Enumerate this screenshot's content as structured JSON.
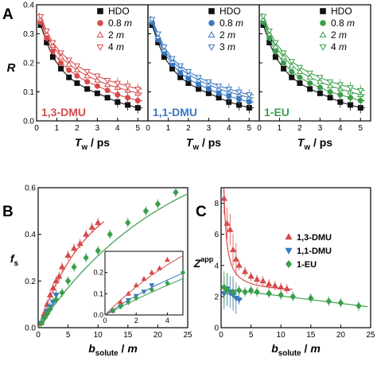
{
  "figure": {
    "panel_letters": [
      "A",
      "B",
      "C"
    ]
  },
  "colors": {
    "red": "#d84a4a",
    "blue": "#3a78c0",
    "green": "#3a9e4a",
    "black": "#111111"
  },
  "chart_data": [
    {
      "type": "scatter",
      "panel": "A",
      "tag": "1,3-DMU",
      "xlabel_main": "T",
      "xlabel_sub": "w",
      "xlabel_unit": " / ps",
      "ylabel": "R",
      "xlim": [
        0,
        5.5
      ],
      "ylim": [
        0,
        0.4
      ],
      "xticks": [
        "0",
        "1",
        "2",
        "3",
        "4",
        "5"
      ],
      "yticks": [
        "0.0",
        "0.1",
        "0.2",
        "0.3",
        "0.4"
      ],
      "legend": [
        {
          "label": "HDO",
          "italic_tail": "",
          "marker": "square",
          "color": "#111111"
        },
        {
          "label": "0.8 ",
          "italic_tail": "m",
          "marker": "circle",
          "color": "#d84a4a"
        },
        {
          "label": "2 ",
          "italic_tail": "m",
          "marker": "triangle-up",
          "color": "#d84a4a"
        },
        {
          "label": "4 ",
          "italic_tail": "m",
          "marker": "triangle-down",
          "color": "#d84a4a"
        }
      ],
      "series": [
        {
          "marker": "square",
          "color": "#111111",
          "x": [
            0.2,
            0.5,
            0.8,
            1.2,
            1.6,
            2.0,
            2.5,
            3.0,
            3.5,
            4.0,
            4.5,
            5.0
          ],
          "y": [
            0.33,
            0.27,
            0.22,
            0.18,
            0.15,
            0.13,
            0.11,
            0.095,
            0.08,
            0.065,
            0.055,
            0.045
          ]
        },
        {
          "marker": "circle",
          "color": "#d84a4a",
          "x": [
            0.2,
            0.5,
            0.8,
            1.2,
            1.6,
            2.0,
            2.5,
            3.0,
            3.5,
            4.0,
            4.5,
            5.0
          ],
          "y": [
            0.34,
            0.285,
            0.24,
            0.2,
            0.175,
            0.155,
            0.135,
            0.12,
            0.105,
            0.09,
            0.08,
            0.07
          ]
        },
        {
          "marker": "triangle-up",
          "color": "#d84a4a",
          "x": [
            0.2,
            0.5,
            0.8,
            1.2,
            1.6,
            2.0,
            2.5,
            3.0,
            3.5,
            4.0,
            4.5,
            5.0
          ],
          "y": [
            0.35,
            0.3,
            0.26,
            0.22,
            0.195,
            0.175,
            0.155,
            0.14,
            0.125,
            0.115,
            0.105,
            0.095
          ]
        },
        {
          "marker": "triangle-down",
          "color": "#d84a4a",
          "x": [
            0.2,
            0.5,
            0.8,
            1.2,
            1.6,
            2.0,
            2.5,
            3.0,
            3.5,
            4.0,
            4.5,
            5.0
          ],
          "y": [
            0.36,
            0.31,
            0.27,
            0.235,
            0.21,
            0.19,
            0.17,
            0.155,
            0.14,
            0.13,
            0.12,
            0.11
          ]
        }
      ]
    },
    {
      "type": "scatter",
      "panel": "A",
      "tag": "1,1-DMU",
      "xlabel_main": "T",
      "xlabel_sub": "w",
      "xlabel_unit": " / ps",
      "xlim": [
        0,
        5.5
      ],
      "ylim": [
        0,
        0.4
      ],
      "xticks": [
        "0",
        "1",
        "2",
        "3",
        "4",
        "5"
      ],
      "legend": [
        {
          "label": "HDO",
          "italic_tail": "",
          "marker": "square",
          "color": "#111111"
        },
        {
          "label": "0.8 ",
          "italic_tail": "m",
          "marker": "circle",
          "color": "#3a78c0"
        },
        {
          "label": "2 ",
          "italic_tail": "m",
          "marker": "triangle-up",
          "color": "#3a78c0"
        },
        {
          "label": "3 ",
          "italic_tail": "m",
          "marker": "triangle-down",
          "color": "#3a78c0"
        }
      ],
      "series": [
        {
          "marker": "square",
          "color": "#111111",
          "x": [
            0.2,
            0.5,
            0.8,
            1.2,
            1.6,
            2.0,
            2.5,
            3.0,
            3.5,
            4.0,
            4.5,
            5.0
          ],
          "y": [
            0.33,
            0.27,
            0.22,
            0.18,
            0.15,
            0.13,
            0.11,
            0.095,
            0.08,
            0.065,
            0.055,
            0.045
          ]
        },
        {
          "marker": "circle",
          "color": "#3a78c0",
          "x": [
            0.2,
            0.5,
            0.8,
            1.2,
            1.6,
            2.0,
            2.5,
            3.0,
            3.5,
            4.0,
            4.5,
            5.0
          ],
          "y": [
            0.34,
            0.28,
            0.235,
            0.195,
            0.165,
            0.145,
            0.125,
            0.11,
            0.095,
            0.085,
            0.075,
            0.065
          ]
        },
        {
          "marker": "triangle-up",
          "color": "#3a78c0",
          "x": [
            0.2,
            0.5,
            0.8,
            1.2,
            1.6,
            2.0,
            2.5,
            3.0,
            3.5,
            4.0,
            4.5,
            5.0
          ],
          "y": [
            0.345,
            0.29,
            0.245,
            0.205,
            0.18,
            0.16,
            0.14,
            0.125,
            0.11,
            0.1,
            0.09,
            0.08
          ]
        },
        {
          "marker": "triangle-down",
          "color": "#3a78c0",
          "x": [
            0.2,
            0.5,
            0.8,
            1.2,
            1.6,
            2.0,
            2.5,
            3.0,
            3.5,
            4.0,
            4.5,
            5.0
          ],
          "y": [
            0.35,
            0.3,
            0.255,
            0.215,
            0.19,
            0.17,
            0.15,
            0.135,
            0.12,
            0.11,
            0.1,
            0.09
          ]
        }
      ]
    },
    {
      "type": "scatter",
      "panel": "A",
      "tag": "1-EU",
      "xlabel_main": "T",
      "xlabel_sub": "w",
      "xlabel_unit": " / ps",
      "xlim": [
        0,
        5.5
      ],
      "ylim": [
        0,
        0.4
      ],
      "xticks": [
        "0",
        "1",
        "2",
        "3",
        "4",
        "5"
      ],
      "legend": [
        {
          "label": "HDO",
          "italic_tail": "",
          "marker": "square",
          "color": "#111111"
        },
        {
          "label": "0.8 ",
          "italic_tail": "m",
          "marker": "circle",
          "color": "#3a9e4a"
        },
        {
          "label": "2 ",
          "italic_tail": "m",
          "marker": "triangle-up",
          "color": "#3a9e4a"
        },
        {
          "label": "4 ",
          "italic_tail": "m",
          "marker": "triangle-down",
          "color": "#3a9e4a"
        }
      ],
      "series": [
        {
          "marker": "square",
          "color": "#111111",
          "x": [
            0.2,
            0.5,
            0.8,
            1.2,
            1.6,
            2.0,
            2.5,
            3.0,
            3.5,
            4.0,
            4.5,
            5.0
          ],
          "y": [
            0.33,
            0.27,
            0.22,
            0.18,
            0.15,
            0.13,
            0.11,
            0.095,
            0.08,
            0.065,
            0.055,
            0.045
          ]
        },
        {
          "marker": "circle",
          "color": "#3a9e4a",
          "x": [
            0.2,
            0.5,
            0.8,
            1.2,
            1.6,
            2.0,
            2.5,
            3.0,
            3.5,
            4.0,
            4.5,
            5.0
          ],
          "y": [
            0.34,
            0.285,
            0.24,
            0.2,
            0.17,
            0.15,
            0.13,
            0.115,
            0.1,
            0.09,
            0.08,
            0.07
          ]
        },
        {
          "marker": "triangle-up",
          "color": "#3a9e4a",
          "x": [
            0.2,
            0.5,
            0.8,
            1.2,
            1.6,
            2.0,
            2.5,
            3.0,
            3.5,
            4.0,
            4.5,
            5.0
          ],
          "y": [
            0.35,
            0.3,
            0.255,
            0.22,
            0.19,
            0.17,
            0.15,
            0.135,
            0.12,
            0.11,
            0.1,
            0.09
          ]
        },
        {
          "marker": "triangle-down",
          "color": "#3a9e4a",
          "x": [
            0.2,
            0.5,
            0.8,
            1.2,
            1.6,
            2.0,
            2.5,
            3.0,
            3.5,
            4.0,
            4.5,
            5.0
          ],
          "y": [
            0.36,
            0.31,
            0.27,
            0.235,
            0.205,
            0.185,
            0.165,
            0.15,
            0.135,
            0.125,
            0.115,
            0.105
          ]
        }
      ]
    },
    {
      "type": "scatter",
      "panel": "B",
      "xlabel_main": "b",
      "xlabel_sub": "solute",
      "xlabel_unit": " / ",
      "xlabel_italic_tail": "m",
      "ylabel_main": "f",
      "ylabel_sub": "s",
      "xlim": [
        0,
        25
      ],
      "ylim": [
        0,
        0.6
      ],
      "xticks": [
        "0",
        "5",
        "10",
        "15",
        "20",
        "25"
      ],
      "yticks": [
        "0.0",
        "0.2",
        "0.4",
        "0.6"
      ],
      "series": [
        {
          "marker": "triangle-up",
          "color": "#d84a4a",
          "x": [
            0.5,
            1.0,
            1.5,
            2.0,
            2.5,
            3.0,
            3.5,
            4.0,
            5.0,
            6.0,
            7.0,
            8.0,
            9.0,
            10.0
          ],
          "y": [
            0.02,
            0.06,
            0.1,
            0.14,
            0.17,
            0.2,
            0.22,
            0.26,
            0.31,
            0.34,
            0.36,
            0.4,
            0.43,
            0.45
          ]
        },
        {
          "marker": "triangle-down",
          "color": "#3a78c0",
          "x": [
            0.5,
            1.0,
            1.5,
            2.0,
            2.5,
            3.0
          ],
          "y": [
            0.02,
            0.04,
            0.07,
            0.09,
            0.11,
            0.14
          ]
        },
        {
          "marker": "diamond",
          "color": "#3a9e4a",
          "x": [
            0.5,
            1.0,
            1.5,
            2.0,
            3.0,
            4.0,
            5.0,
            6.0,
            8.0,
            10.0,
            12.0,
            15.0,
            18.0,
            20.0,
            23.0
          ],
          "y": [
            0.02,
            0.04,
            0.06,
            0.08,
            0.12,
            0.15,
            0.2,
            0.26,
            0.3,
            0.33,
            0.4,
            0.45,
            0.5,
            0.53,
            0.58
          ]
        }
      ],
      "inset": {
        "xlim": [
          0,
          5
        ],
        "ylim": [
          0,
          0.3
        ],
        "xticks": [
          "0",
          "2",
          "4"
        ],
        "yticks": [
          "0.0",
          "0.1",
          "0.2"
        ]
      }
    },
    {
      "type": "scatter",
      "panel": "C",
      "xlabel_main": "b",
      "xlabel_sub": "solute",
      "xlabel_unit": " / ",
      "xlabel_italic_tail": "m",
      "ylabel_main": "Z",
      "ylabel_sup": "app",
      "xlim": [
        0,
        25
      ],
      "ylim": [
        0,
        9
      ],
      "xticks": [
        "0",
        "5",
        "10",
        "15",
        "20",
        "25"
      ],
      "yticks": [
        "0",
        "2",
        "4",
        "6",
        "8"
      ],
      "legend": [
        {
          "label": "1,3-DMU",
          "marker": "triangle-up",
          "color": "#d84a4a"
        },
        {
          "label": "1,1-DMU",
          "marker": "triangle-down",
          "color": "#3a78c0"
        },
        {
          "label": "1-EU",
          "marker": "diamond",
          "color": "#3a9e4a"
        }
      ],
      "series": [
        {
          "marker": "triangle-up",
          "color": "#d84a4a",
          "x": [
            0.5,
            1.0,
            1.5,
            2.0,
            2.5,
            3.0,
            4.0,
            5.0,
            6.0,
            7.0,
            8.0,
            9.0,
            10.0,
            11.0
          ],
          "y": [
            8.3,
            6.7,
            6.3,
            5.0,
            4.4,
            4.0,
            3.6,
            3.3,
            3.1,
            3.0,
            2.8,
            2.7,
            2.6,
            2.5
          ]
        },
        {
          "marker": "triangle-down",
          "color": "#3a78c0",
          "x": [
            0.5,
            1.0,
            1.5,
            2.0,
            2.5,
            3.0
          ],
          "y": [
            2.2,
            2.5,
            2.3,
            2.1,
            1.9,
            1.8
          ]
        },
        {
          "marker": "diamond",
          "color": "#3a9e4a",
          "x": [
            0.5,
            1.0,
            2.0,
            3.0,
            4.0,
            5.0,
            6.0,
            8.0,
            10.0,
            12.0,
            15.0,
            18.0,
            20.0,
            23.0
          ],
          "y": [
            2.6,
            2.4,
            2.3,
            2.4,
            2.3,
            2.4,
            2.3,
            2.2,
            2.1,
            2.0,
            1.9,
            1.7,
            1.6,
            1.4
          ]
        }
      ]
    }
  ]
}
